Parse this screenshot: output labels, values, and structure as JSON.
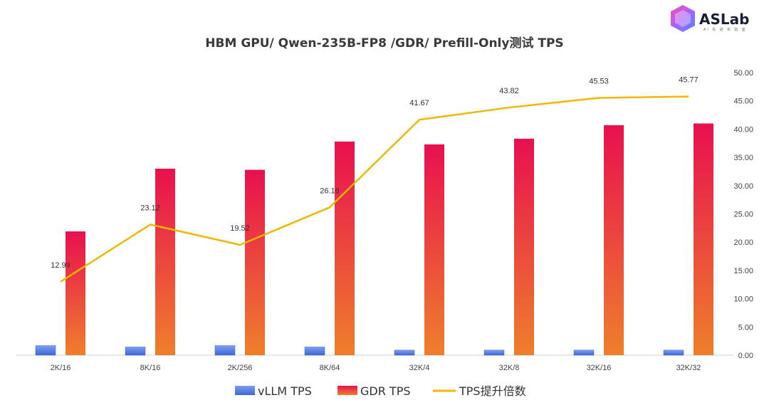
{
  "logo": {
    "text": "ASLab",
    "subtitle": "AI 先 进 实 验 室"
  },
  "chart_data": {
    "type": "bar",
    "title": "HBM GPU/ Qwen-235B-FP8 /GDR/ Prefill-Only测试 TPS",
    "categories": [
      "2K/16",
      "8K/16",
      "2K/256",
      "8K/64",
      "32K/4",
      "32K/8",
      "32K/16",
      "32K/32"
    ],
    "ylim": [
      0,
      50
    ],
    "yticks": [
      "0.00",
      "5.00",
      "10.00",
      "15.00",
      "20.00",
      "25.00",
      "30.00",
      "35.00",
      "40.00",
      "45.00",
      "50.00"
    ],
    "grid": false,
    "legend_position": "bottom",
    "series": [
      {
        "name": "vLLM TPS",
        "kind": "bar",
        "values": [
          1.7,
          1.45,
          1.7,
          1.45,
          0.9,
          0.9,
          0.9,
          0.9
        ],
        "color": "#4a6fd9"
      },
      {
        "name": "GDR TPS",
        "kind": "bar",
        "values": [
          21.9,
          33.0,
          32.8,
          37.8,
          37.3,
          38.3,
          40.7,
          41.0
        ],
        "color": "#e8174f"
      },
      {
        "name": "TPS提升倍数",
        "kind": "line",
        "values": [
          12.99,
          23.12,
          19.52,
          26.16,
          41.67,
          43.82,
          45.53,
          45.77
        ],
        "labels": [
          "12.99",
          "23.12",
          "19.52",
          "26.16",
          "41.67",
          "43.82",
          "45.53",
          "45.77"
        ],
        "color": "#f2b705"
      }
    ]
  }
}
